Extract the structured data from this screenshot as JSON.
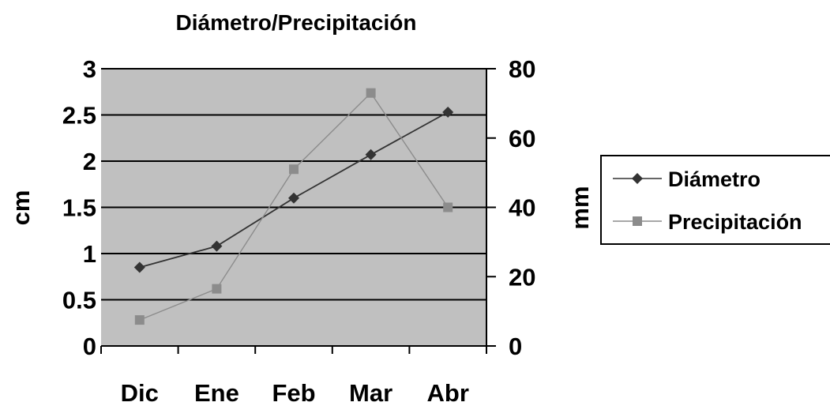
{
  "chart_data": {
    "type": "line",
    "title": "Diámetro/Precipitación",
    "categories": [
      "Dic",
      "Ene",
      "Feb",
      "Mar",
      "Abr"
    ],
    "y_left": {
      "label": "cm",
      "range": [
        0,
        3
      ],
      "ticks": [
        "0",
        "0.5",
        "1",
        "1.5",
        "2",
        "2.5",
        "3"
      ],
      "tick_values": [
        0,
        0.5,
        1,
        1.5,
        2,
        2.5,
        3
      ]
    },
    "y_right": {
      "label": "mm",
      "range": [
        0,
        80
      ],
      "ticks": [
        "0",
        "20",
        "40",
        "60",
        "80"
      ],
      "tick_values": [
        0,
        20,
        40,
        60,
        80
      ]
    },
    "series": [
      {
        "name": "Diámetro",
        "axis": "left",
        "marker": "diamond",
        "color": "#333333",
        "values": [
          0.85,
          1.08,
          1.6,
          2.07,
          2.53
        ]
      },
      {
        "name": "Precipitación",
        "axis": "right",
        "marker": "square",
        "color": "#8c8c8c",
        "values": [
          7.5,
          16.5,
          51,
          73,
          40
        ]
      }
    ],
    "plot_background": "#c0c0c0",
    "gridlines": true,
    "legend_position": "right"
  }
}
